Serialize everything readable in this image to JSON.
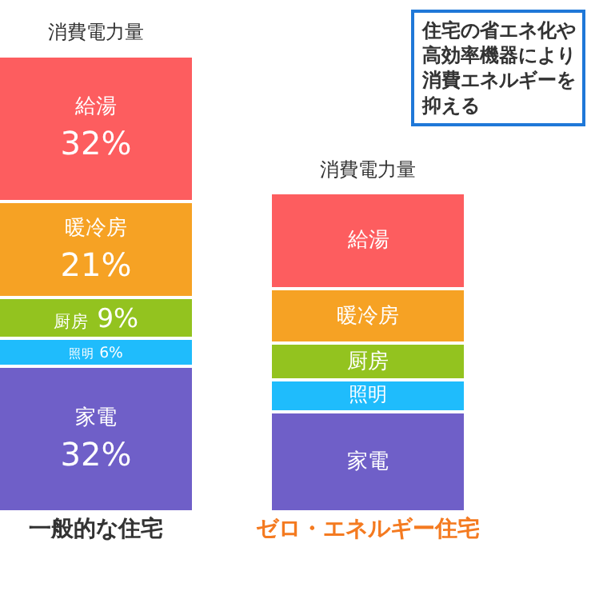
{
  "chart_data": {
    "type": "bar",
    "stacked": true,
    "ylim": [
      0,
      100
    ],
    "legend": false,
    "tick_labels": "x",
    "categories": [
      "一般的な住宅",
      "ゼロ・エネルギー住宅"
    ],
    "series": [
      {
        "name": "家電",
        "color": "#6f5fc8",
        "values": [
          32,
          22
        ],
        "value_labels": [
          "32%",
          null
        ]
      },
      {
        "name": "照明",
        "color": "#1fbcfc",
        "values": [
          6,
          7
        ],
        "value_labels": [
          "6%",
          null
        ]
      },
      {
        "name": "厨房",
        "color": "#93c31f",
        "values": [
          9,
          8
        ],
        "value_labels": [
          "9%",
          null
        ]
      },
      {
        "name": "暖冷房",
        "color": "#f6a224",
        "values": [
          21,
          12
        ],
        "value_labels": [
          "21%",
          null
        ]
      },
      {
        "name": "給湯",
        "color": "#fd5d5f",
        "values": [
          32,
          21
        ],
        "value_labels": [
          "32%",
          null
        ]
      }
    ],
    "annotations": [
      {
        "text": "消費電力量",
        "x": "一般的な住宅",
        "y": 100
      },
      {
        "text": "消費電力量",
        "x": "ゼロ・エネルギー住宅",
        "y": 70
      },
      "住宅の省エネ化や高効率機器により消費エネルギーを抑える"
    ]
  }
}
